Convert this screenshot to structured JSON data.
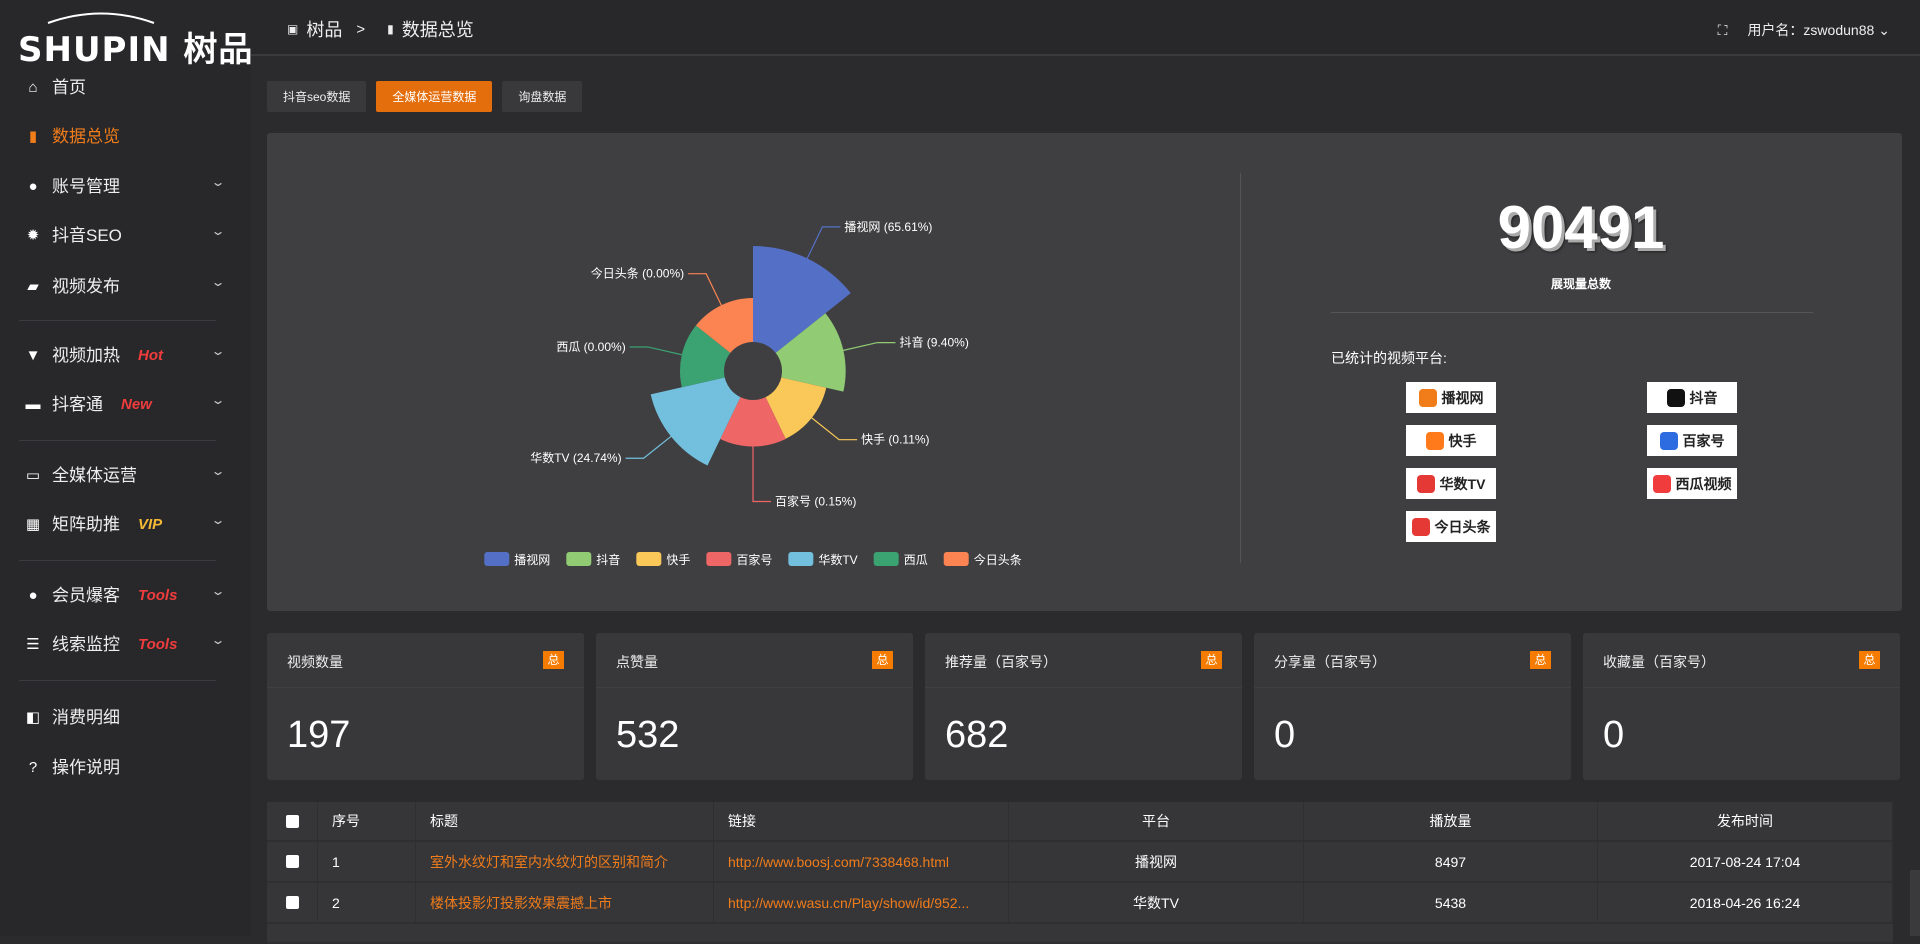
{
  "brand": {
    "logo_text": "SHUPIN 树品"
  },
  "sidebar": {
    "items": [
      {
        "label": "首页",
        "icon": "home-icon",
        "glyph": "⌂"
      },
      {
        "label": "数据总览",
        "icon": "bar-chart-icon",
        "glyph": "▮",
        "active": true
      },
      {
        "label": "账号管理",
        "icon": "user-icon",
        "glyph": "●",
        "chevron": true
      },
      {
        "label": "抖音SEO",
        "icon": "gear-icon",
        "glyph": "✹",
        "chevron": true
      },
      {
        "label": "视频发布",
        "icon": "video-camera-icon",
        "glyph": "▰",
        "chevron": true
      },
      {
        "label": "视频加热",
        "icon": "monitor-stand-icon",
        "glyph": "▼",
        "chevron": true,
        "tag": "Hot",
        "tag_color": "#f03c3c"
      },
      {
        "label": "抖客通",
        "icon": "chat-icon",
        "glyph": "▬",
        "chevron": true,
        "tag": "New",
        "tag_color": "#f03c3c"
      },
      {
        "label": "全媒体运营",
        "icon": "desktop-icon",
        "glyph": "▭",
        "chevron": true
      },
      {
        "label": "矩阵助推",
        "icon": "grid-icon",
        "glyph": "▦",
        "chevron": true,
        "tag": "VIP",
        "tag_color": "#f5b935"
      },
      {
        "label": "会员爆客",
        "icon": "user-icon",
        "glyph": "●",
        "chevron": true,
        "tag": "Tools",
        "tag_color": "#f03c3c"
      },
      {
        "label": "线索监控",
        "icon": "sliders-icon",
        "glyph": "☰",
        "chevron": true,
        "tag": "Tools",
        "tag_color": "#f03c3c"
      },
      {
        "label": "消费明细",
        "icon": "wallet-icon",
        "glyph": "◧"
      },
      {
        "label": "操作说明",
        "icon": "help-icon",
        "glyph": "?"
      }
    ]
  },
  "header": {
    "breadcrumb": [
      "树品",
      "数据总览"
    ],
    "separator": ">",
    "user_label": "用户名：zswodun88"
  },
  "tabs": [
    {
      "label": "抖音seo数据"
    },
    {
      "label": "全媒体运营数据",
      "active": true
    },
    {
      "label": "询盘数据"
    }
  ],
  "chart_data": {
    "type": "pie",
    "rose_type": "radius",
    "categories": [
      "播视网",
      "抖音",
      "快手",
      "百家号",
      "华数TV",
      "西瓜",
      "今日头条"
    ],
    "values": [
      65.61,
      9.4,
      0.11,
      0.15,
      24.74,
      0.0,
      0.0
    ],
    "labels": [
      "播视网 (65.61%)",
      "抖音 (9.40%)",
      "快手 (0.11%)",
      "百家号 (0.15%)",
      "华数TV (24.74%)",
      "西瓜 (0.00%)",
      "今日头条 (0.00%)"
    ],
    "colors": [
      "#5470c6",
      "#91cc75",
      "#fac858",
      "#ee6666",
      "#73c0de",
      "#3ba272",
      "#fc8452"
    ],
    "legend_position": "bottom"
  },
  "summary": {
    "total": "90491",
    "total_label": "展现量总数",
    "platforms_label": "已统计的视频平台:",
    "platforms": [
      {
        "name": "播视网",
        "color": "#f07c1a"
      },
      {
        "name": "抖音",
        "color": "#111"
      },
      {
        "name": "快手",
        "color": "#ff7a1a"
      },
      {
        "name": "百家号",
        "color": "#2d6be0"
      },
      {
        "name": "华数TV",
        "color": "#e53935"
      },
      {
        "name": "西瓜视频",
        "color": "#f03c3c"
      },
      {
        "name": "今日头条",
        "color": "#e53935"
      }
    ]
  },
  "cards": [
    {
      "title": "视频数量",
      "badge": "总",
      "value": "197"
    },
    {
      "title": "点赞量",
      "badge": "总",
      "value": "532"
    },
    {
      "title": "推荐量（百家号）",
      "badge": "总",
      "value": "682"
    },
    {
      "title": "分享量（百家号）",
      "badge": "总",
      "value": "0"
    },
    {
      "title": "收藏量（百家号）",
      "badge": "总",
      "value": "0"
    }
  ],
  "table": {
    "headers": [
      "序号",
      "标题",
      "链接",
      "平台",
      "播放量",
      "发布时间"
    ],
    "rows": [
      [
        "1",
        "室外水纹灯和室内水纹灯的区别和简介",
        "http://www.boosj.com/7338468.html",
        "播视网",
        "8497",
        "2017-08-24 17:04"
      ],
      [
        "2",
        "楼体投影灯投影效果震撼上市",
        "http://www.wasu.cn/Play/show/id/952...",
        "华数TV",
        "5438",
        "2018-04-26 16:24"
      ]
    ]
  }
}
